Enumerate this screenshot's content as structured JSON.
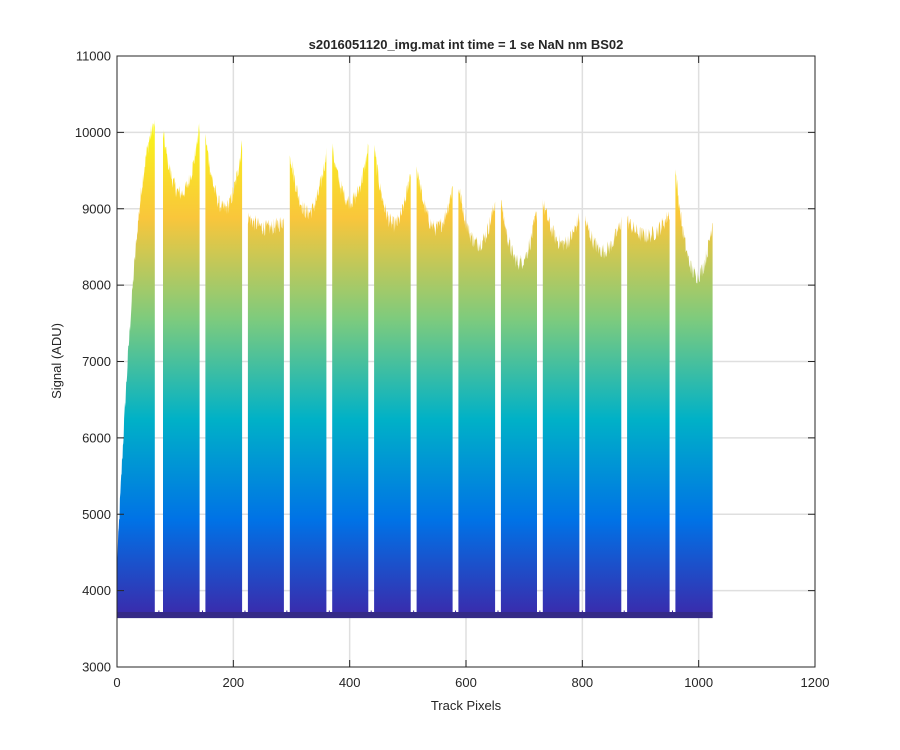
{
  "chart_data": {
    "type": "area",
    "title": "s2016051120_img.mat int time = 1 se  NaN nm BS02",
    "xlabel": "Track Pixels",
    "ylabel": "Signal (ADU)",
    "xlim": [
      0,
      1200
    ],
    "ylim": [
      3000,
      11000
    ],
    "xticks": [
      0,
      200,
      400,
      600,
      800,
      1000,
      1200
    ],
    "yticks": [
      3000,
      4000,
      5000,
      6000,
      7000,
      8000,
      9000,
      10000,
      11000
    ],
    "grid": true,
    "baseline": 3680,
    "colormap": [
      "#3e26a8",
      "#0072e6",
      "#00b1c7",
      "#7ecb7d",
      "#f9c63b",
      "#f9fb15"
    ],
    "color_range": [
      3600,
      10200
    ],
    "segments": [
      {
        "x_start": 0,
        "x_end": 65,
        "y_start": 4300,
        "y_mid": 8500,
        "y_end": 10100,
        "min_y": 3740
      },
      {
        "x_start": 79,
        "x_end": 142,
        "y_start": 10000,
        "y_mid": 9200,
        "y_end": 10080,
        "min_y": 3740
      },
      {
        "x_start": 152,
        "x_end": 215,
        "y_start": 9950,
        "y_mid": 9000,
        "y_end": 9850,
        "min_y": 3740
      },
      {
        "x_start": 225,
        "x_end": 287,
        "y_start": 8900,
        "y_mid": 8750,
        "y_end": 8850,
        "min_y": 3740
      },
      {
        "x_start": 297,
        "x_end": 360,
        "y_start": 9750,
        "y_mid": 8950,
        "y_end": 9750,
        "min_y": 3740
      },
      {
        "x_start": 370,
        "x_end": 432,
        "y_start": 9800,
        "y_mid": 9100,
        "y_end": 9800,
        "min_y": 3740
      },
      {
        "x_start": 442,
        "x_end": 505,
        "y_start": 9800,
        "y_mid": 8800,
        "y_end": 9500,
        "min_y": 3740
      },
      {
        "x_start": 515,
        "x_end": 577,
        "y_start": 9550,
        "y_mid": 8750,
        "y_end": 9300,
        "min_y": 3740
      },
      {
        "x_start": 587,
        "x_end": 650,
        "y_start": 9300,
        "y_mid": 8550,
        "y_end": 9100,
        "min_y": 3740
      },
      {
        "x_start": 660,
        "x_end": 722,
        "y_start": 9100,
        "y_mid": 8300,
        "y_end": 9000,
        "min_y": 3740
      },
      {
        "x_start": 732,
        "x_end": 795,
        "y_start": 9100,
        "y_mid": 8550,
        "y_end": 8900,
        "min_y": 3740
      },
      {
        "x_start": 805,
        "x_end": 867,
        "y_start": 8850,
        "y_mid": 8450,
        "y_end": 8850,
        "min_y": 3740
      },
      {
        "x_start": 877,
        "x_end": 950,
        "y_start": 8850,
        "y_mid": 8650,
        "y_end": 8950,
        "min_y": 3740
      },
      {
        "x_start": 960,
        "x_end": 1024,
        "y_start": 9500,
        "y_mid": 8150,
        "y_end": 8850,
        "min_y": 3740
      }
    ]
  }
}
